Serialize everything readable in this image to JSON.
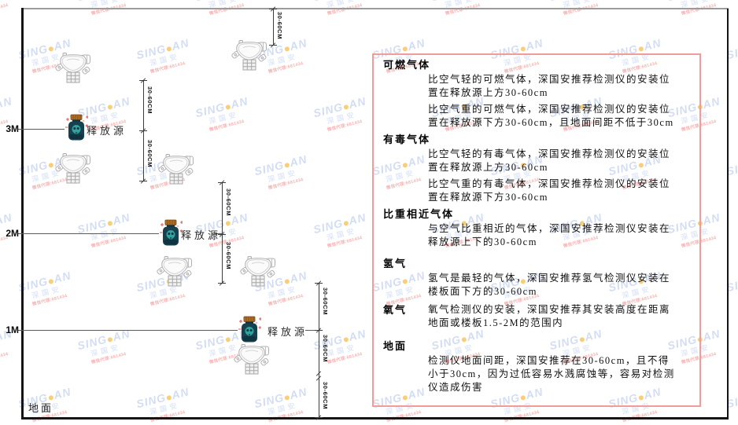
{
  "diagram": {
    "axis_labels": {
      "m3": "3M",
      "m2": "2M",
      "m1": "1M"
    },
    "ground_label": "地面",
    "source_label": "释放源",
    "dim_label": "30-60CM"
  },
  "panel": {
    "border_color": "#f19b9b",
    "sections": [
      {
        "heading": "可燃气体",
        "paragraphs": [
          "比空气轻的可燃气体，深国安推荐检测仪的安装位置在释放源上方30-60cm",
          "比空气重的可燃气体，深国安推荐检测仪的安装位置在释放源下方30-60cm，且地面间距不低于30cm"
        ]
      },
      {
        "heading": "有毒气体",
        "paragraphs": [
          "比空气轻的有毒气体，深国安推荐检测仪的安装位置在释放源上方30-60cm",
          "比空气重的有毒气体，深国安推荐检测仪的安装位置在释放源下方30-60cm"
        ]
      },
      {
        "heading": "比重相近气体",
        "paragraphs": [
          "与空气比重相近的气体，深国安推荐检测仪安装在释放源上下的30-60cm"
        ]
      },
      {
        "heading": "氢气",
        "paragraphs": [
          "氢气是最轻的气体，深国安推荐氢气检测仪安装在楼板面下方的30-60cm"
        ]
      },
      {
        "heading": "氧气",
        "paragraphs": [
          "氧气检测仪的安装，深国安推荐其安装高度在距离地面或楼板1.5-2M的范围内"
        ]
      },
      {
        "heading": "地面",
        "paragraphs": [
          "检测仪地面间距，深国安推荐在30-60cm，且不得小于30cm，因为过低容易水溅腐蚀等，容易对检测仪造成伤害"
        ]
      }
    ]
  },
  "watermark": {
    "brand_left": "SING",
    "brand_right": "AN",
    "subtitle": "深国安",
    "agent_line": "微信代理:681434"
  },
  "colors": {
    "source_body": "#17414f",
    "source_cap": "#b06f28",
    "source_face": "#2fa3a0",
    "detector_outline": "#b0b0b3",
    "dim_line": "#3c3c3c",
    "panel_border": "#f19b9b"
  }
}
